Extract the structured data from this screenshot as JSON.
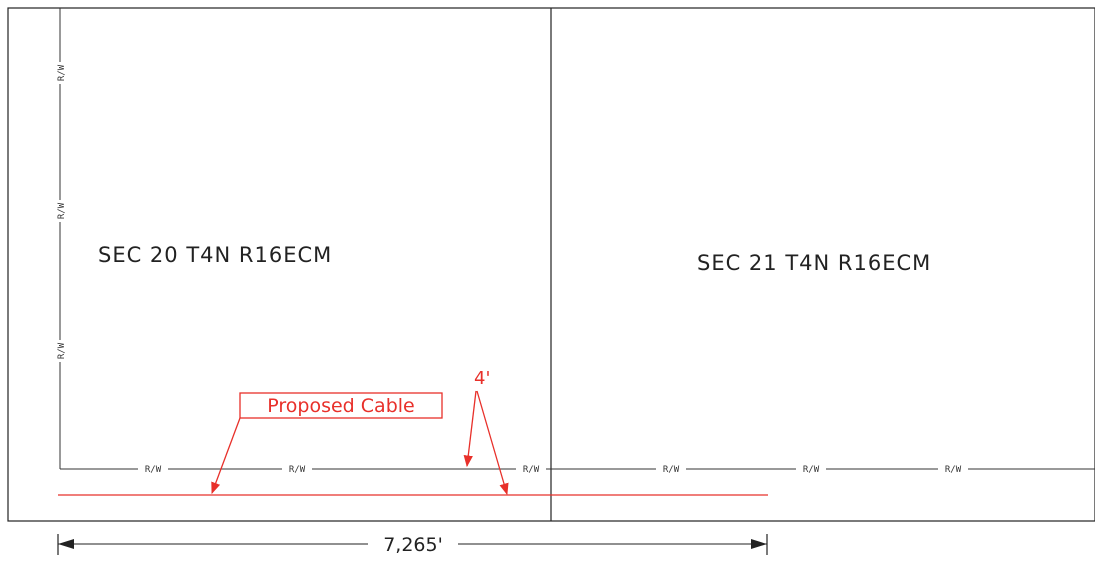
{
  "sections": {
    "left": "SEC 20 T4N R16ECM",
    "right": "SEC 21 T4N R16ECM"
  },
  "right_of_way_label": "R/W",
  "proposed_cable": {
    "label": "Proposed Cable",
    "offset": "4'"
  },
  "dimension": {
    "length": "7,265'"
  },
  "colors": {
    "linework": "#222222",
    "proposed": "#e8302a"
  }
}
